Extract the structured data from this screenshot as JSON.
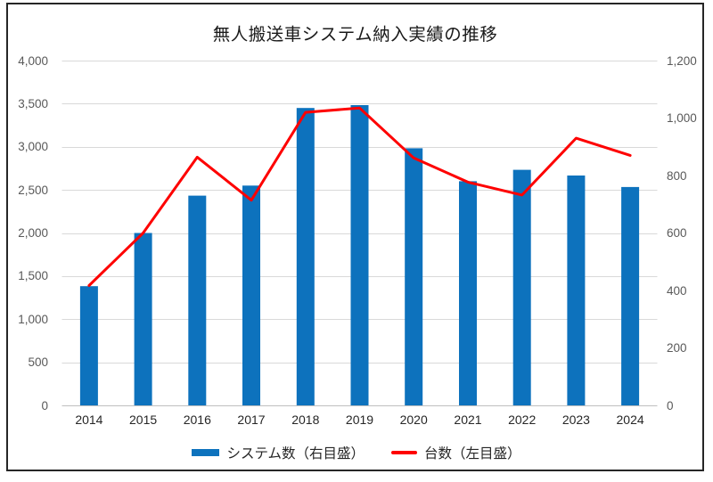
{
  "title": "無人搬送車システム納入実績の推移",
  "legend": [
    {
      "label": "システム数（右目盛）",
      "type": "bar",
      "color": "#0D72BD"
    },
    {
      "label": "台数（左目盛）",
      "type": "line",
      "color": "#FE0000"
    }
  ],
  "chart_data": {
    "type": "combo",
    "title": "無人搬送車システム納入実績の推移",
    "categories": [
      "2014",
      "2015",
      "2016",
      "2017",
      "2018",
      "2019",
      "2020",
      "2021",
      "2022",
      "2023",
      "2024"
    ],
    "series": [
      {
        "name": "システム数（右目盛）",
        "type": "bar",
        "axis": "right",
        "color": "#0D72BD",
        "values": [
          415,
          600,
          730,
          765,
          1035,
          1045,
          895,
          780,
          820,
          800,
          760
        ]
      },
      {
        "name": "台数（左目盛）",
        "type": "line",
        "axis": "left",
        "color": "#FE0000",
        "values": [
          1390,
          2000,
          2880,
          2380,
          3400,
          3450,
          2870,
          2590,
          2440,
          3100,
          2900
        ]
      }
    ],
    "left_axis": {
      "min": 0,
      "max": 4000,
      "step": 500,
      "tick_labels": [
        "0",
        "500",
        "1,000",
        "1,500",
        "2,000",
        "2,500",
        "3,000",
        "3,500",
        "4,000"
      ]
    },
    "right_axis": {
      "min": 0,
      "max": 1200,
      "step": 200,
      "tick_labels": [
        "0",
        "200",
        "400",
        "600",
        "800",
        "1,000",
        "1,200"
      ]
    },
    "grid": true,
    "legend_position": "bottom",
    "grid_color": "#D9D9D9",
    "axis_line_color": "#BFBFBF",
    "tick_text_color": "#595959",
    "category_text_color": "#262626"
  }
}
